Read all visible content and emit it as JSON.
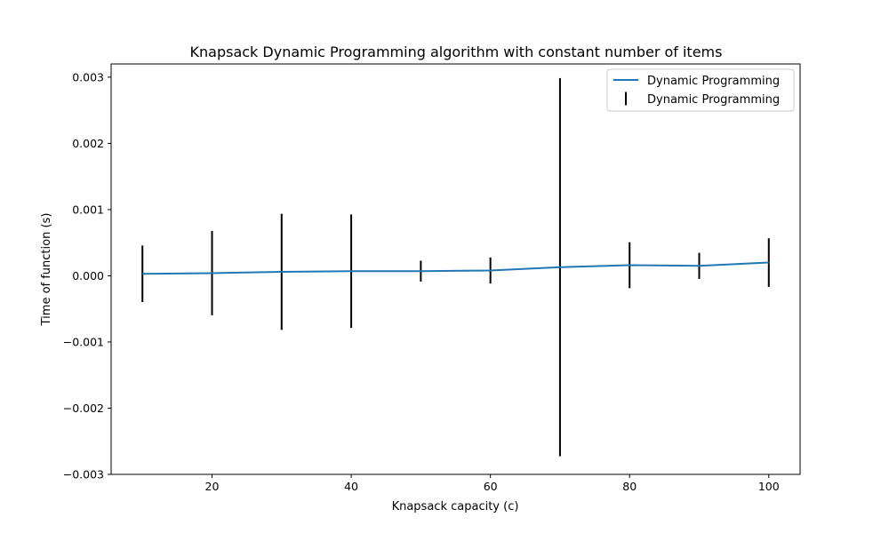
{
  "chart_data": {
    "type": "line",
    "title": "Knapsack Dynamic Programming algorithm with constant number of items",
    "xlabel": "Knapsack capacity (c)",
    "ylabel": "Time of function (s)",
    "xlim": [
      5.5,
      104.5
    ],
    "ylim": [
      -0.003,
      0.0032
    ],
    "x_ticks": [
      20,
      40,
      60,
      80,
      100
    ],
    "y_ticks": [
      -0.003,
      -0.002,
      -0.001,
      0.0,
      0.001,
      0.002,
      0.003
    ],
    "x_tick_labels": [
      "20",
      "40",
      "60",
      "80",
      "100"
    ],
    "y_tick_labels": [
      "−0.003",
      "−0.002",
      "−0.001",
      "0.000",
      "0.001",
      "0.002",
      "0.003"
    ],
    "grid": false,
    "legend_position": "top-right",
    "series": [
      {
        "name": "Dynamic Programming",
        "kind": "line",
        "color": "#1f77b4",
        "x": [
          10,
          20,
          30,
          40,
          50,
          60,
          70,
          80,
          90,
          100
        ],
        "y": [
          3e-05,
          4e-05,
          6e-05,
          7e-05,
          7e-05,
          8e-05,
          0.00013,
          0.00016,
          0.00015,
          0.0002
        ]
      },
      {
        "name": "Dynamic Programming",
        "kind": "errorbar",
        "color": "#000000",
        "x": [
          10,
          20,
          30,
          40,
          50,
          60,
          70,
          80,
          90,
          100
        ],
        "y": [
          3e-05,
          4e-05,
          6e-05,
          7e-05,
          7e-05,
          8e-05,
          0.00013,
          0.00016,
          0.00015,
          0.0002
        ],
        "yerr": [
          0.00042,
          0.00063,
          0.00087,
          0.00085,
          0.00015,
          0.00019,
          0.00285,
          0.00034,
          0.00019,
          0.00036
        ]
      }
    ]
  }
}
